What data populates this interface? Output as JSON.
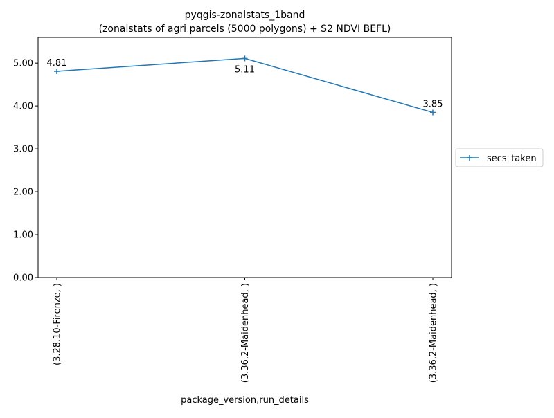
{
  "chart_data": {
    "type": "line",
    "title_line1": "pyqgis-zonalstats_1band",
    "title_line2": "(zonalstats of agri parcels (5000 polygons) + S2 NDVI BEFL)",
    "xlabel": "package_version,run_details",
    "ylabel": "",
    "categories": [
      "(3.28.10-Firenze, )",
      "(3.36.2-Maidenhead, )",
      "(3.36.2-Maidenhead, )"
    ],
    "series": [
      {
        "name": "secs_taken",
        "color": "#1f77b4",
        "marker": "plus",
        "values": [
          4.81,
          5.11,
          3.85
        ]
      }
    ],
    "data_labels": [
      "4.81",
      "5.11",
      "3.85"
    ],
    "ylim": [
      0,
      5.6
    ],
    "yticks": [
      0,
      1,
      2,
      3,
      4,
      5
    ],
    "ytick_labels": [
      "0.00",
      "1.00",
      "2.00",
      "3.00",
      "4.00",
      "5.00"
    ],
    "grid": false,
    "legend_position": "outside-right"
  }
}
